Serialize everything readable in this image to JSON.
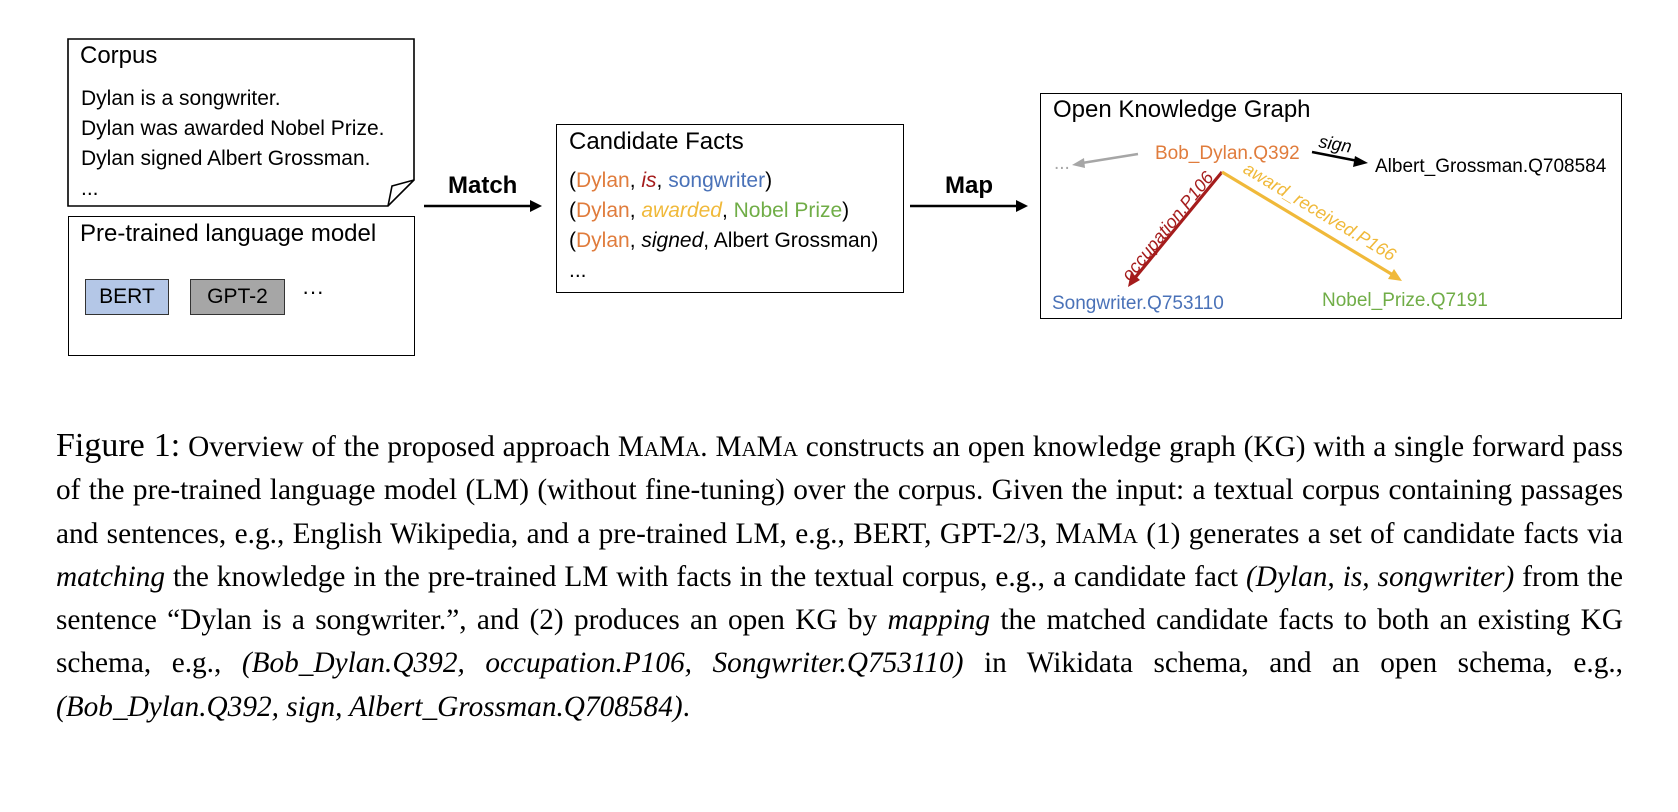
{
  "corpus": {
    "title": "Corpus",
    "lines": [
      "Dylan is a songwriter.",
      "Dylan was awarded Nobel Prize.",
      "Dylan signed Albert Grossman.",
      "..."
    ]
  },
  "lm": {
    "title": "Pre-trained language model",
    "models": [
      "BERT",
      "GPT-2"
    ],
    "more": "···",
    "colors": {
      "bert": "#b4c7e7",
      "gpt2": "#a6a6a6"
    }
  },
  "match_label": "Match",
  "map_label": "Map",
  "candidate": {
    "title": "Candidate Facts",
    "facts": [
      {
        "open": "(",
        "subject": "Dylan",
        "sep1": ", ",
        "relation": "is",
        "sep2": ", ",
        "object": "songwriter",
        "close": ")"
      },
      {
        "open": "(",
        "subject": "Dylan",
        "sep1": ", ",
        "relation": "awarded",
        "sep2": ", ",
        "object": "Nobel Prize",
        "close": ")"
      },
      {
        "open": "(",
        "subject": "Dylan",
        "sep1": ", ",
        "relation": "signed",
        "sep2": ", ",
        "object": "Albert Grossman",
        "close": ")"
      }
    ],
    "more": "..."
  },
  "kg": {
    "title": "Open Knowledge Graph",
    "nodes": {
      "dylan": "Bob_Dylan.Q392",
      "grossman": "Albert_Grossman.Q708584",
      "songwriter": "Songwriter.Q753110",
      "nobel": "Nobel_Prize.Q7191",
      "ellipsis": "..."
    },
    "edges": {
      "sign": "sign",
      "occupation": "occupation.P106",
      "award": "award_received.P166"
    },
    "colors": {
      "orange": "#e07c3c",
      "red": "#a51c1c",
      "blue": "#4a72b8",
      "yellow": "#f0b93a",
      "green": "#70ad47",
      "gray": "#a6a6a6"
    }
  },
  "caption": {
    "label": "Figure 1:",
    "s1": " Overview of the proposed approach ",
    "mama": "MaMa",
    "s2": ". ",
    "s3": " constructs an open knowledge graph (KG) with a single forward pass of the pre-trained language model (LM) (without fine-tuning) over the corpus. Given the input: a textual corpus containing passages and sentences, e.g., English Wikipedia, and a pre-trained LM, e.g., BERT, GPT-2/3, ",
    "s4": " (1) generates a set of candidate facts via ",
    "matching": "matching",
    "s5": " the knowledge in the pre-trained LM with facts in the textual corpus, e.g., a candidate fact ",
    "fact1": "(Dylan, is, songwriter)",
    "s6": " from the sentence “Dylan is a songwriter.”, and (2) produces an open KG by ",
    "mapping": "mapping",
    "s7": " the matched candidate facts to both an existing KG schema, e.g., ",
    "fact2": "(Bob_Dylan.Q392, occupation.P106, Songwriter.Q753110)",
    "s8": " in Wikidata schema, and an open schema, e.g., ",
    "fact3": "(Bob_Dylan.Q392, sign, Albert_Grossman.Q708584)",
    "s9": "."
  }
}
